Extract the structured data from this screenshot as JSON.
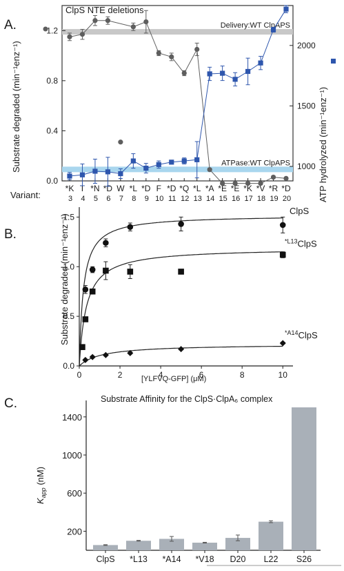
{
  "figure": {
    "panel_a_letter": "A.",
    "panel_b_letter": "B.",
    "panel_c_letter": "C."
  },
  "chart_data": [
    {
      "type": "line",
      "title": "ClpS NTE deletions",
      "ylabel": "Substrate degraded (min⁻¹enz⁻¹)",
      "y2label": "ATP hydrolyzed (min⁻¹enz⁻¹)",
      "ylim": [
        0,
        1.4
      ],
      "y2lim": [
        880,
        2330
      ],
      "yticks": [
        "0.0",
        "0.4",
        "0.8",
        "1.2"
      ],
      "y2ticks": [
        "1000",
        "1500",
        "2000"
      ],
      "variant_label": "Variant:",
      "categories": [
        "*K",
        "T",
        "*N",
        "*D",
        "W",
        "*L",
        "*D",
        "F",
        "*D",
        "*Q",
        "*L",
        "*A",
        "*E",
        "*E",
        "*K",
        "*V",
        "*R",
        "*D"
      ],
      "positions": [
        "3",
        "4",
        "5",
        "6",
        "7",
        "8",
        "9",
        "10",
        "11",
        "12",
        "13",
        "14",
        "15",
        "16",
        "17",
        "18",
        "19",
        "20"
      ],
      "reference_lines": [
        {
          "label": "Delivery:WT ClpAPS",
          "axis": "left",
          "value": 1.19,
          "color": "#c8c8c8"
        },
        {
          "label": "ATPase:WT ClpAPS",
          "axis": "right",
          "value": 975,
          "color": "#a9d6ee"
        }
      ],
      "series": [
        {
          "axis": "left",
          "marker": "circle",
          "color": "#5e5e5e",
          "values": [
            1.15,
            1.17,
            1.28,
            1.28,
            null,
            1.23,
            1.27,
            1.02,
            0.99,
            0.86,
            1.05,
            0.09,
            -0.02,
            -0.02,
            -0.02,
            -0.02,
            0.03,
            0.02
          ],
          "errors": [
            0.03,
            0.04,
            0.04,
            0.03,
            null,
            0.03,
            0.09,
            0.02,
            0.03,
            0.02,
            0.05,
            0.01,
            0.01,
            0.01,
            0.01,
            0.01,
            0.01,
            0.01
          ]
        },
        {
          "axis": "right",
          "marker": "square",
          "color": "#2e56ad",
          "values": [
            920,
            930,
            960,
            955,
            940,
            1045,
            985,
            1015,
            1035,
            1045,
            1055,
            1765,
            1770,
            1720,
            1785,
            1855,
            2130,
            2300
          ],
          "errors": [
            30,
            90,
            100,
            120,
            40,
            60,
            40,
            30,
            15,
            25,
            150,
            55,
            60,
            55,
            110,
            55,
            20,
            30
          ]
        }
      ],
      "annotation": {
        "x_index": 4,
        "value": 0.31,
        "note": "isolated gray point"
      }
    },
    {
      "type": "line",
      "xlabel": "[YLFVQ-GFP] (μM)",
      "ylabel": "Substrate degraded (min⁻¹enz⁻¹)",
      "xlim": [
        0,
        10.5
      ],
      "ylim": [
        0,
        1.6
      ],
      "xticks": [
        "0",
        "2",
        "4",
        "6",
        "8",
        "10"
      ],
      "yticks": [
        "0.0",
        "0.5",
        "1.0",
        "1.5"
      ],
      "series": [
        {
          "name": "ClpS",
          "marker": "circle",
          "vmax": 1.52,
          "km": 0.2,
          "x": [
            0.3,
            0.65,
            1.3,
            2.5,
            5,
            10
          ],
          "y": [
            0.77,
            0.97,
            1.24,
            1.4,
            1.43,
            1.42
          ],
          "err": [
            0.04,
            0.03,
            0.04,
            0.04,
            0.07,
            0.08
          ]
        },
        {
          "name": "*L13ClpS",
          "marker": "square",
          "vmax": 1.19,
          "km": 0.35,
          "x": [
            0.15,
            0.3,
            0.65,
            1.3,
            2.5,
            5,
            10
          ],
          "y": [
            0.19,
            0.47,
            0.75,
            0.96,
            0.95,
            0.95,
            1.12
          ],
          "err": [
            0.02,
            0.02,
            0.02,
            0.09,
            0.07,
            0.02,
            0.03
          ]
        },
        {
          "name": "*A14ClpS",
          "marker": "diamond",
          "vmax": 0.22,
          "km": 1.1,
          "x": [
            0.3,
            0.65,
            1.3,
            2.5,
            5,
            10
          ],
          "y": [
            0.06,
            0.09,
            0.11,
            0.13,
            0.17,
            0.23
          ],
          "err": [
            0.01,
            0.01,
            0.01,
            0.01,
            0.01,
            0.01
          ]
        }
      ],
      "legend_labels": [
        {
          "text": "ClpS",
          "sup": ""
        },
        {
          "text": "ClpS",
          "sup": "*L13"
        },
        {
          "text": "ClpS",
          "sup": "*A14"
        }
      ]
    },
    {
      "type": "bar",
      "title": "Substrate Affinity for the ClpS·ClpA₆ complex",
      "ylabel": "K_app (nM)",
      "ylim": [
        0,
        1500
      ],
      "yticks": [
        "200",
        "600",
        "1000",
        "1400"
      ],
      "categories": [
        "ClpS",
        "*L13",
        "*A14",
        "*V18",
        "D20",
        "L22",
        "S26"
      ],
      "values": [
        55,
        100,
        120,
        80,
        130,
        300,
        1500
      ],
      "errors": [
        4,
        4,
        25,
        4,
        30,
        10,
        0
      ],
      "bar_color": "#a9b0b8"
    }
  ]
}
